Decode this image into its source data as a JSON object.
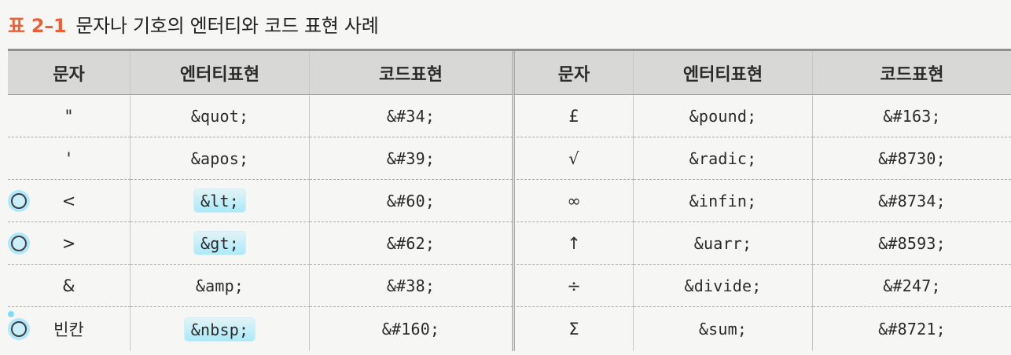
{
  "caption": {
    "label": "표 2–1",
    "title": "문자나 기호의 엔터티와 코드 표현 사례"
  },
  "table": {
    "headers": [
      "문자",
      "엔터티표현",
      "코드표현",
      "문자",
      "엔터티표현",
      "코드표현"
    ],
    "left_rows": [
      {
        "char": "\"",
        "entity": "&quot;",
        "code": "&#34;"
      },
      {
        "char": "'",
        "entity": "&apos;",
        "code": "&#39;"
      },
      {
        "char": "<",
        "entity": "&lt;",
        "code": "&#60;"
      },
      {
        "char": ">",
        "entity": "&gt;",
        "code": "&#62;"
      },
      {
        "char": "&",
        "entity": "&amp;",
        "code": "&#38;"
      },
      {
        "char": "빈칸",
        "entity": "&nbsp;",
        "code": "&#160;"
      }
    ],
    "right_rows": [
      {
        "char": "£",
        "entity": "&pound;",
        "code": "&#163;"
      },
      {
        "char": "√",
        "entity": "&radic;",
        "code": "&#8730;"
      },
      {
        "char": "∞",
        "entity": "&infin;",
        "code": "&#8734;"
      },
      {
        "char": "↑",
        "entity": "&uarr;",
        "code": "&#8593;"
      },
      {
        "char": "÷",
        "entity": "&divide;",
        "code": "&#247;"
      },
      {
        "char": "Σ",
        "entity": "&sum;",
        "code": "&#8721;"
      }
    ]
  },
  "annotations": {
    "highlight_color": "#78e2ff",
    "marker_color": "#3b3f47"
  }
}
